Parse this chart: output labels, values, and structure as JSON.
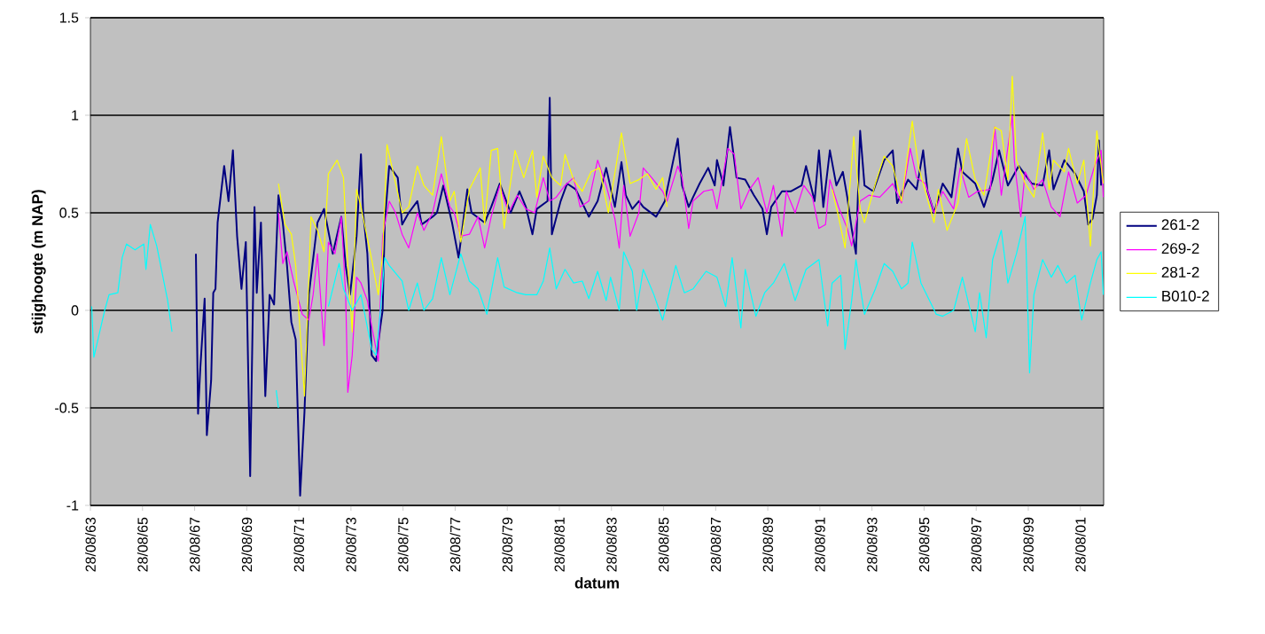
{
  "chart_data": {
    "type": "line",
    "xlabel": "datum",
    "ylabel": "stijghoogte (m NAP)",
    "xlim": [
      "1963-08-28",
      "2002-07-20"
    ],
    "ylim": [
      -1,
      1.5
    ],
    "yticks": [
      -1,
      -0.5,
      0,
      0.5,
      1,
      1.5
    ],
    "xticks": [
      {
        "value": "1963-08-28",
        "label": "28/08/63"
      },
      {
        "value": "1965-08-28",
        "label": "28/08/65"
      },
      {
        "value": "1967-08-28",
        "label": "28/08/67"
      },
      {
        "value": "1969-08-28",
        "label": "28/08/69"
      },
      {
        "value": "1971-08-28",
        "label": "28/08/71"
      },
      {
        "value": "1973-08-28",
        "label": "28/08/73"
      },
      {
        "value": "1975-08-28",
        "label": "28/08/75"
      },
      {
        "value": "1977-08-28",
        "label": "28/08/77"
      },
      {
        "value": "1979-08-28",
        "label": "28/08/79"
      },
      {
        "value": "1981-08-28",
        "label": "28/08/81"
      },
      {
        "value": "1983-08-28",
        "label": "28/08/83"
      },
      {
        "value": "1985-08-28",
        "label": "28/08/85"
      },
      {
        "value": "1987-08-28",
        "label": "28/08/87"
      },
      {
        "value": "1989-08-28",
        "label": "28/08/89"
      },
      {
        "value": "1991-08-28",
        "label": "28/08/91"
      },
      {
        "value": "1993-08-28",
        "label": "28/08/93"
      },
      {
        "value": "1995-08-28",
        "label": "28/08/95"
      },
      {
        "value": "1997-08-28",
        "label": "28/08/97"
      },
      {
        "value": "1999-08-28",
        "label": "28/08/99"
      },
      {
        "value": "2001-08-28",
        "label": "28/08/01"
      }
    ],
    "grid": "y",
    "legend": "right",
    "series": [
      {
        "name": "261-2",
        "color": "#000080",
        "x": [
          "1967-09",
          "1967-10",
          "1967-11",
          "1968-01",
          "1968-02",
          "1968-04",
          "1968-05",
          "1968-06",
          "1968-07",
          "1968-10",
          "1968-12",
          "1969-02",
          "1969-04",
          "1969-06",
          "1969-08",
          "1969-10",
          "1969-12",
          "1970-01",
          "1970-03",
          "1970-05",
          "1970-07",
          "1970-09",
          "1970-11",
          "1971-01",
          "1971-03",
          "1971-05",
          "1971-07",
          "1971-09",
          "1971-11",
          "1972-01",
          "1972-05",
          "1972-08",
          "1972-12",
          "1973-04",
          "1973-06",
          "1973-08",
          "1973-11",
          "1974-01",
          "1974-02",
          "1974-04",
          "1974-06",
          "1974-08",
          "1974-10",
          "1974-11",
          "1974-12",
          "1975-02",
          "1975-06",
          "1975-08",
          "1975-11",
          "1976-03",
          "1976-05",
          "1976-10",
          "1976-12",
          "1977-03",
          "1977-07",
          "1977-10",
          "1978-02",
          "1978-04",
          "1978-10",
          "1979-01",
          "1979-05",
          "1979-10",
          "1980-02",
          "1980-05",
          "1980-08",
          "1980-10",
          "1981-03",
          "1981-04",
          "1981-05",
          "1981-09",
          "1981-12",
          "1982-04",
          "1982-10",
          "1983-02",
          "1983-06",
          "1983-10",
          "1984-01",
          "1984-03",
          "1984-06",
          "1984-09",
          "1984-11",
          "1985-05",
          "1985-09",
          "1986-03",
          "1986-05",
          "1986-08",
          "1986-10",
          "1987-01",
          "1987-05",
          "1987-08",
          "1987-09",
          "1987-12",
          "1988-03",
          "1988-06",
          "1988-10",
          "1989-02",
          "1989-06",
          "1989-08",
          "1989-10",
          "1990-03",
          "1990-07",
          "1990-12",
          "1991-02",
          "1991-06",
          "1991-08",
          "1991-10",
          "1992-01",
          "1992-04",
          "1992-07",
          "1992-09",
          "1992-11",
          "1993-01",
          "1993-03",
          "1993-05",
          "1993-09",
          "1994-02",
          "1994-06",
          "1994-08",
          "1995-01",
          "1995-05",
          "1995-08",
          "1995-10",
          "1996-01",
          "1996-05",
          "1996-09",
          "1996-12",
          "1997-02",
          "1997-08",
          "1997-12",
          "1998-04",
          "1998-07",
          "1998-11",
          "1999-04",
          "1999-10",
          "2000-03",
          "2000-06",
          "2000-08",
          "2001-01",
          "2001-06",
          "2001-10",
          "2001-12",
          "2002-02",
          "2002-04",
          "2002-05",
          "2002-06"
        ],
        "values": [
          0.29,
          -0.53,
          -0.3,
          0.06,
          -0.64,
          -0.36,
          0.09,
          0.11,
          0.45,
          0.74,
          0.56,
          0.82,
          0.38,
          0.11,
          0.35,
          -0.85,
          0.53,
          0.09,
          0.45,
          -0.44,
          0.08,
          0.03,
          0.59,
          0.45,
          0.23,
          -0.06,
          -0.15,
          -0.95,
          -0.52,
          0.08,
          0.45,
          0.52,
          0.29,
          0.48,
          0.23,
          0.08,
          0.38,
          0.8,
          0.5,
          0.29,
          -0.23,
          -0.26,
          -0.08,
          0.0,
          0.45,
          0.74,
          0.68,
          0.44,
          0.5,
          0.56,
          0.44,
          0.48,
          0.5,
          0.64,
          0.45,
          0.27,
          0.62,
          0.5,
          0.45,
          0.53,
          0.65,
          0.5,
          0.61,
          0.53,
          0.39,
          0.52,
          0.56,
          1.09,
          0.39,
          0.56,
          0.65,
          0.62,
          0.48,
          0.56,
          0.73,
          0.53,
          0.76,
          0.59,
          0.52,
          0.56,
          0.53,
          0.48,
          0.56,
          0.88,
          0.64,
          0.53,
          0.58,
          0.65,
          0.73,
          0.64,
          0.77,
          0.64,
          0.94,
          0.68,
          0.67,
          0.59,
          0.52,
          0.39,
          0.53,
          0.61,
          0.61,
          0.64,
          0.74,
          0.56,
          0.82,
          0.53,
          0.82,
          0.64,
          0.71,
          0.58,
          0.42,
          0.29,
          0.92,
          0.64,
          0.61,
          0.77,
          0.82,
          0.55,
          0.67,
          0.62,
          0.82,
          0.61,
          0.5,
          0.65,
          0.58,
          0.83,
          0.71,
          0.65,
          0.53,
          0.67,
          0.82,
          0.64,
          0.74,
          0.65,
          0.64,
          0.82,
          0.62,
          0.77,
          0.7,
          0.61,
          0.44,
          0.47,
          0.59,
          0.87,
          0.64
        ]
      },
      {
        "name": "269-2",
        "color": "#ff00ff",
        "x": [
          "1970-11",
          "1971-01",
          "1971-03",
          "1971-06",
          "1971-10",
          "1972-01",
          "1972-03",
          "1972-05",
          "1972-08",
          "1972-10",
          "1973-01",
          "1973-04",
          "1973-06",
          "1973-07",
          "1973-09",
          "1973-11",
          "1974-01",
          "1974-04",
          "1974-06",
          "1974-09",
          "1974-11",
          "1975-02",
          "1975-05",
          "1975-08",
          "1975-11",
          "1976-03",
          "1976-06",
          "1976-10",
          "1977-02",
          "1977-06",
          "1977-08",
          "1977-11",
          "1978-03",
          "1978-07",
          "1978-10",
          "1979-01",
          "1979-05",
          "1979-09",
          "1980-01",
          "1980-05",
          "1980-09",
          "1981-01",
          "1981-04",
          "1981-07",
          "1981-11",
          "1982-03",
          "1982-06",
          "1982-10",
          "1983-02",
          "1983-06",
          "1983-10",
          "1983-12",
          "1984-02",
          "1984-05",
          "1984-09",
          "1984-11",
          "1985-03",
          "1985-08",
          "1985-10",
          "1986-03",
          "1986-05",
          "1986-08",
          "1986-10",
          "1987-03",
          "1987-07",
          "1987-09",
          "1988-02",
          "1988-05",
          "1988-08",
          "1988-12",
          "1989-04",
          "1989-08",
          "1989-11",
          "1990-03",
          "1990-05",
          "1990-09",
          "1991-01",
          "1991-05",
          "1991-08",
          "1991-11",
          "1992-01",
          "1992-05",
          "1992-09",
          "1992-11",
          "1993-03",
          "1993-07",
          "1993-12",
          "1994-06",
          "1994-10",
          "1995-02",
          "1995-05",
          "1995-09",
          "1996-01",
          "1996-05",
          "1996-10",
          "1997-01",
          "1997-05",
          "1997-09",
          "1998-03",
          "1998-05",
          "1998-08",
          "1999-01",
          "1999-02",
          "1999-05",
          "1999-07",
          "1999-11",
          "2000-03",
          "2000-07",
          "2000-11",
          "2001-03",
          "2001-07",
          "2001-11",
          "2002-03",
          "2002-06",
          "2002-07"
        ],
        "values": [
          0.5,
          0.24,
          0.3,
          0.15,
          -0.02,
          -0.05,
          0.08,
          0.29,
          -0.18,
          0.35,
          0.29,
          0.48,
          0.08,
          -0.42,
          -0.23,
          0.17,
          0.14,
          0.05,
          -0.08,
          -0.26,
          0.38,
          0.56,
          0.5,
          0.39,
          0.32,
          0.5,
          0.41,
          0.5,
          0.7,
          0.53,
          0.5,
          0.38,
          0.39,
          0.48,
          0.32,
          0.48,
          0.64,
          0.5,
          0.59,
          0.52,
          0.5,
          0.68,
          0.56,
          0.58,
          0.64,
          0.68,
          0.53,
          0.56,
          0.77,
          0.64,
          0.47,
          0.32,
          0.64,
          0.38,
          0.5,
          0.73,
          0.68,
          0.61,
          0.56,
          0.74,
          0.68,
          0.42,
          0.56,
          0.61,
          0.62,
          0.52,
          0.83,
          0.8,
          0.52,
          0.62,
          0.68,
          0.5,
          0.64,
          0.38,
          0.61,
          0.5,
          0.64,
          0.58,
          0.42,
          0.44,
          0.67,
          0.53,
          0.42,
          0.33,
          0.56,
          0.59,
          0.58,
          0.65,
          0.55,
          0.83,
          0.68,
          0.65,
          0.5,
          0.61,
          0.52,
          0.73,
          0.58,
          0.61,
          0.62,
          0.94,
          0.59,
          1.0,
          0.76,
          0.48,
          0.71,
          0.62,
          0.67,
          0.53,
          0.48,
          0.71,
          0.55,
          0.59,
          0.74,
          0.82,
          0.58
        ]
      },
      {
        "name": "281-2",
        "color": "#ffff00",
        "x": [
          "1970-11",
          "1971-02",
          "1971-05",
          "1971-07",
          "1971-11",
          "1972-02",
          "1972-05",
          "1972-08",
          "1972-10",
          "1973-02",
          "1973-05",
          "1973-07",
          "1973-09",
          "1973-11",
          "1974-01",
          "1974-06",
          "1974-09",
          "1974-11",
          "1975-01",
          "1975-04",
          "1975-08",
          "1975-11",
          "1976-03",
          "1976-06",
          "1976-10",
          "1977-02",
          "1977-06",
          "1977-08",
          "1977-11",
          "1978-03",
          "1978-08",
          "1978-10",
          "1979-01",
          "1979-04",
          "1979-07",
          "1979-12",
          "1980-04",
          "1980-08",
          "1980-10",
          "1981-01",
          "1981-05",
          "1981-09",
          "1981-11",
          "1982-03",
          "1982-07",
          "1982-11",
          "1983-03",
          "1983-07",
          "1984-01",
          "1984-05",
          "1984-09",
          "1985-01",
          "1985-05",
          "1985-08",
          "1985-10",
          "1989-01",
          "1992-02",
          "1992-05",
          "1992-08",
          "1992-12",
          "1993-03",
          "1993-05",
          "1993-10",
          "1994-02",
          "1994-06",
          "1994-10",
          "1995-03",
          "1995-06",
          "1995-09",
          "1996-01",
          "1996-03",
          "1996-07",
          "1996-12",
          "1997-04",
          "1997-08",
          "1997-12",
          "1998-05",
          "1998-08",
          "1998-11",
          "1999-01",
          "1999-03",
          "1999-07",
          "1999-11",
          "2000-03",
          "2000-06",
          "2000-08",
          "2001-01",
          "2001-03",
          "2001-07",
          "2001-10",
          "2002-01",
          "2002-04",
          "2002-07"
        ],
        "values": [
          0.65,
          0.44,
          0.39,
          0.23,
          -0.44,
          0.48,
          0.41,
          0.3,
          0.7,
          0.77,
          0.68,
          0.23,
          -0.11,
          0.62,
          0.53,
          0.26,
          0.08,
          0.29,
          0.85,
          0.7,
          0.5,
          0.53,
          0.74,
          0.64,
          0.59,
          0.89,
          0.56,
          0.61,
          0.35,
          0.62,
          0.73,
          0.44,
          0.82,
          0.83,
          0.42,
          0.82,
          0.68,
          0.82,
          0.58,
          0.79,
          0.68,
          0.64,
          0.8,
          0.67,
          0.61,
          0.71,
          0.73,
          0.5,
          0.91,
          0.65,
          0.67,
          0.7,
          0.62,
          0.68,
          0.53,
          null,
          0.62,
          0.48,
          0.32,
          0.89,
          0.52,
          0.45,
          0.65,
          0.79,
          0.74,
          0.56,
          0.97,
          0.73,
          0.61,
          0.45,
          0.62,
          0.41,
          0.55,
          0.88,
          0.67,
          0.59,
          0.94,
          0.92,
          0.67,
          1.2,
          0.77,
          0.65,
          0.58,
          0.91,
          0.62,
          0.77,
          0.71,
          0.83,
          0.65,
          0.77,
          0.33,
          0.92,
          0.65
        ]
      },
      {
        "name": "B010-2",
        "color": "#00ffff",
        "x": [
          "1963-09",
          "1963-10",
          "1964-03",
          "1964-05",
          "1964-09",
          "1964-11",
          "1965-01",
          "1965-05",
          "1965-09",
          "1965-10",
          "1965-12",
          "1966-03",
          "1966-08",
          "1966-10",
          "1968-07",
          "1970-10",
          "1970-11",
          "1971-07",
          "1972-10",
          "1973-03",
          "1973-05",
          "1973-09",
          "1974-01",
          "1974-06",
          "1974-08",
          "1974-10",
          "1974-12",
          "1975-02",
          "1975-08",
          "1975-11",
          "1976-03",
          "1976-06",
          "1976-10",
          "1977-02",
          "1977-06",
          "1977-11",
          "1978-03",
          "1978-07",
          "1978-11",
          "1979-04",
          "1979-07",
          "1980-01",
          "1980-05",
          "1980-10",
          "1981-01",
          "1981-04",
          "1981-07",
          "1981-11",
          "1982-03",
          "1982-07",
          "1982-10",
          "1983-02",
          "1983-06",
          "1983-08",
          "1983-12",
          "1984-02",
          "1984-06",
          "1984-08",
          "1984-11",
          "1985-04",
          "1985-08",
          "1986-02",
          "1986-06",
          "1986-10",
          "1987-04",
          "1987-09",
          "1988-01",
          "1988-04",
          "1988-08",
          "1988-10",
          "1989-03",
          "1989-07",
          "1989-11",
          "1990-04",
          "1990-09",
          "1991-02",
          "1991-08",
          "1991-12",
          "1992-02",
          "1992-06",
          "1992-08",
          "1992-11",
          "1993-01",
          "1993-05",
          "1993-10",
          "1994-02",
          "1994-06",
          "1994-10",
          "1995-01",
          "1995-03",
          "1995-07",
          "1996-02",
          "1996-05",
          "1996-10",
          "1997-02",
          "1997-08",
          "1997-10",
          "1998-01",
          "1998-04",
          "1998-08",
          "1998-11",
          "1999-03",
          "1999-07",
          "1999-09",
          "1999-11",
          "2000-03",
          "2000-07",
          "2000-10",
          "2001-02",
          "2001-06",
          "2001-09",
          "2002-01",
          "2002-04",
          "2002-06",
          "2002-07"
        ],
        "values": [
          0.02,
          -0.24,
          0.0,
          0.08,
          0.09,
          0.27,
          0.34,
          0.31,
          0.34,
          0.21,
          0.44,
          0.33,
          0.05,
          -0.11,
          null,
          -0.41,
          -0.5,
          null,
          0.02,
          0.24,
          0.11,
          0.0,
          0.08,
          -0.2,
          -0.23,
          0.0,
          0.27,
          0.23,
          0.15,
          0.0,
          0.14,
          0.0,
          0.06,
          0.27,
          0.08,
          0.29,
          0.15,
          0.11,
          -0.02,
          0.27,
          0.12,
          0.09,
          0.08,
          0.08,
          0.15,
          0.32,
          0.11,
          0.21,
          0.14,
          0.15,
          0.06,
          0.2,
          0.05,
          0.17,
          0.0,
          0.3,
          0.2,
          0.0,
          0.21,
          0.08,
          -0.05,
          0.23,
          0.09,
          0.11,
          0.2,
          0.17,
          0.02,
          0.27,
          -0.09,
          0.21,
          -0.03,
          0.09,
          0.14,
          0.24,
          0.05,
          0.21,
          0.26,
          -0.08,
          0.14,
          0.18,
          -0.2,
          0.05,
          0.26,
          -0.02,
          0.11,
          0.24,
          0.2,
          0.11,
          0.14,
          0.35,
          0.14,
          -0.02,
          -0.03,
          0.0,
          0.17,
          -0.11,
          0.09,
          -0.14,
          0.26,
          0.41,
          0.14,
          0.29,
          0.48,
          -0.32,
          0.08,
          0.26,
          0.17,
          0.23,
          0.14,
          0.18,
          -0.05,
          0.14,
          0.26,
          0.3,
          0.08
        ]
      }
    ]
  }
}
